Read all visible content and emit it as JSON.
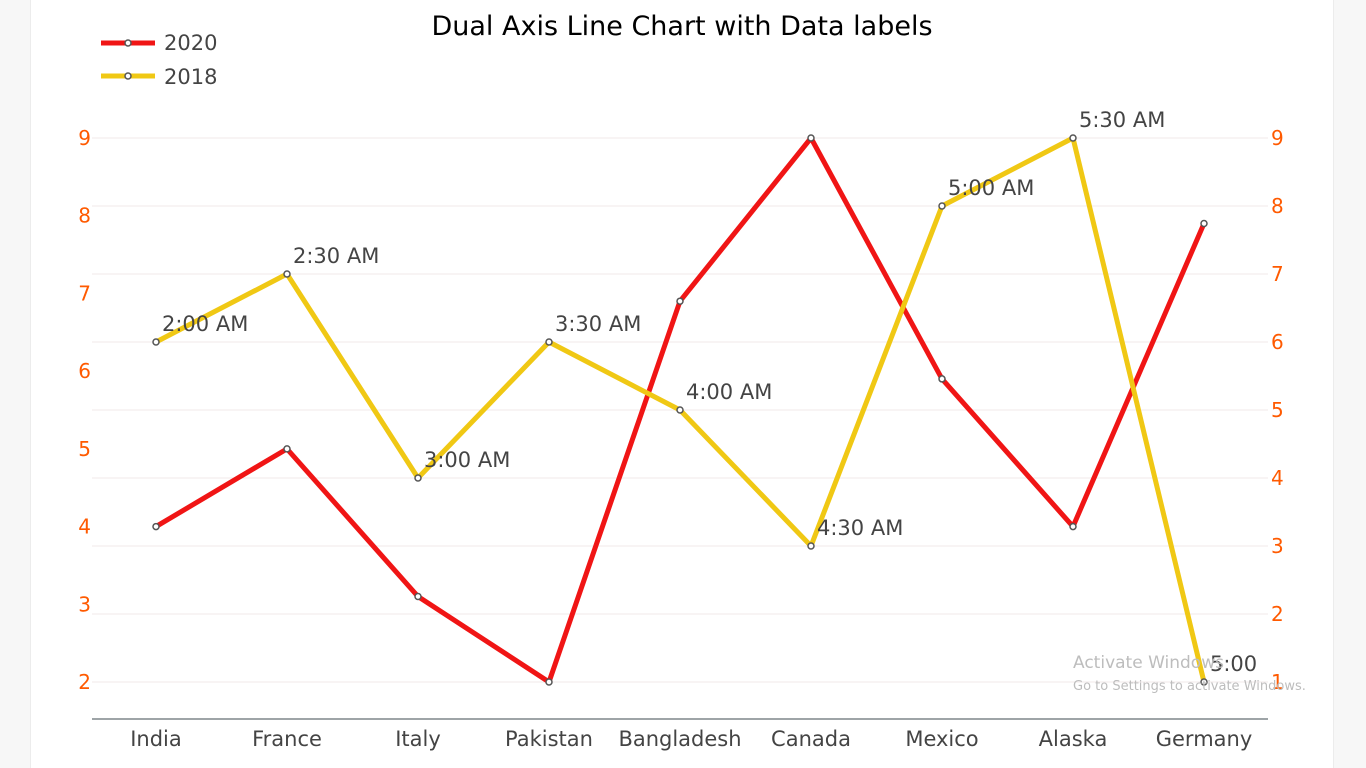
{
  "chart_data": {
    "type": "line",
    "title": "Dual Axis Line Chart with Data labels",
    "categories": [
      "India",
      "France",
      "Italy",
      "Pakistan",
      "Bangladesh",
      "Canada",
      "Mexico",
      "Alaska",
      "Germany"
    ],
    "series": [
      {
        "name": "2020",
        "axis": "left",
        "color": "#f01515",
        "values": [
          4,
          5,
          3.1,
          2,
          6.9,
          9,
          5.9,
          4,
          7.9
        ]
      },
      {
        "name": "2018",
        "axis": "right",
        "color": "#f0c814",
        "values": [
          6,
          7,
          4,
          6,
          5,
          3,
          8,
          9,
          1
        ],
        "data_labels": [
          "2:00 AM",
          "2:30 AM",
          "3:00 AM",
          "3:30 AM",
          "4:00 AM",
          "4:30 AM",
          "5:00 AM",
          "5:30 AM",
          "5:00"
        ]
      }
    ],
    "y_left": {
      "ticks": [
        2,
        3,
        4,
        5,
        6,
        7,
        8,
        9
      ],
      "range": [
        2,
        9
      ],
      "color": "#ff5a00"
    },
    "y_right": {
      "ticks": [
        1,
        2,
        3,
        4,
        5,
        6,
        7,
        8,
        9
      ],
      "range": [
        1,
        9
      ],
      "color": "#ff5a00"
    },
    "xlabel": "",
    "ylabel": "",
    "legend_position": "top-left",
    "grid": true
  },
  "watermark": {
    "line1": "Activate Windows",
    "line2": "Go to Settings to activate Windows."
  }
}
